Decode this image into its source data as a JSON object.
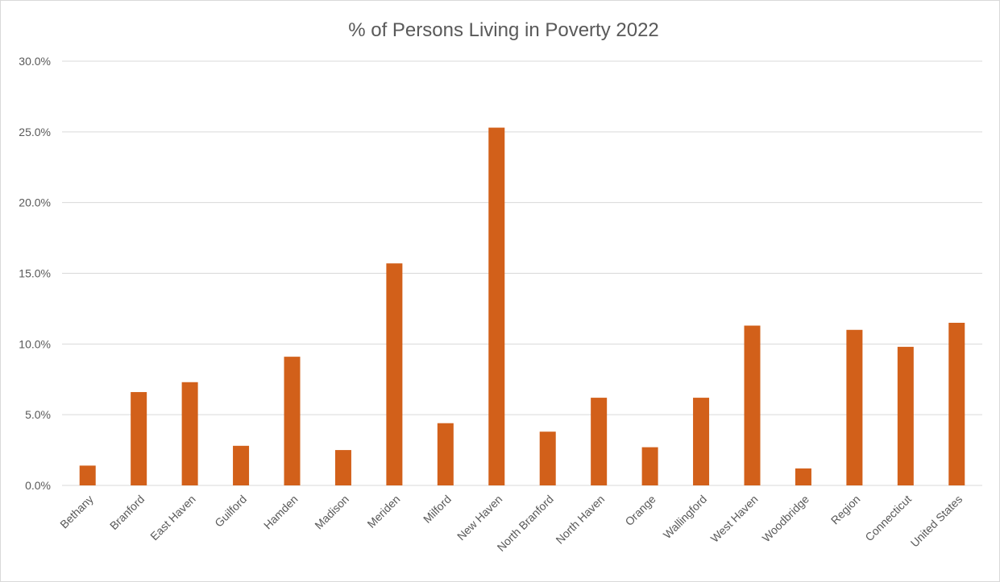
{
  "chart_data": {
    "type": "bar",
    "title": "% of Persons Living in Poverty 2022",
    "xlabel": "",
    "ylabel": "",
    "categories": [
      "Bethany",
      "Branford",
      "East Haven",
      "Guilford",
      "Hamden",
      "Madison",
      "Meriden",
      "Milford",
      "New Haven",
      "North Branford",
      "North Haven",
      "Orange",
      "Wallingford",
      "West Haven",
      "Woodbridge",
      "Region",
      "Connecticut",
      "United States"
    ],
    "values": [
      1.4,
      6.6,
      7.3,
      2.8,
      9.1,
      2.5,
      15.7,
      4.4,
      25.3,
      3.8,
      6.2,
      2.7,
      6.2,
      11.3,
      1.2,
      11.0,
      9.8,
      11.5
    ],
    "ylim": [
      0,
      30
    ],
    "yticks": [
      0,
      5,
      10,
      15,
      20,
      25,
      30
    ],
    "ytick_labels": [
      "0.0%",
      "5.0%",
      "10.0%",
      "15.0%",
      "20.0%",
      "25.0%",
      "30.0%"
    ],
    "grid": true,
    "legend": "none",
    "bar_color": "#D2601A",
    "gridline_color": "#D9D9D9"
  }
}
